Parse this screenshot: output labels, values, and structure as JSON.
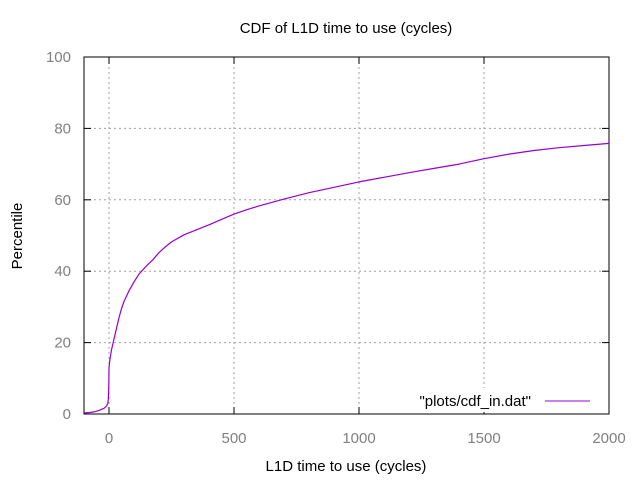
{
  "chart_data": {
    "type": "line",
    "title": "CDF of L1D time to use (cycles)",
    "xlabel": "L1D time to use (cycles)",
    "ylabel": "Percentile",
    "xlim": [
      -100,
      2000
    ],
    "ylim": [
      0,
      100
    ],
    "xticks": [
      0,
      500,
      1000,
      1500,
      2000
    ],
    "yticks": [
      0,
      20,
      40,
      60,
      80,
      100
    ],
    "grid": true,
    "legend_position": "bottom-right",
    "series": [
      {
        "name": "\"plots/cdf_in.dat\"",
        "color": "#9400d3",
        "x": [
          -100,
          -80,
          -60,
          -40,
          -20,
          -10,
          -5,
          -3,
          -1,
          0,
          3,
          10,
          20,
          30,
          40,
          50,
          60,
          80,
          100,
          120,
          150,
          175,
          200,
          225,
          250,
          300,
          350,
          400,
          450,
          500,
          550,
          600,
          700,
          800,
          900,
          1000,
          1100,
          1200,
          1300,
          1400,
          1500,
          1600,
          1700,
          1800,
          1900,
          2000
        ],
        "y": [
          0.3,
          0.4,
          0.6,
          1.0,
          1.6,
          2.2,
          3.0,
          4.0,
          8.0,
          13.0,
          15.0,
          18.0,
          21.0,
          24.0,
          27.0,
          29.5,
          31.5,
          34.5,
          37.0,
          39.2,
          41.5,
          43.2,
          45.2,
          46.8,
          48.2,
          50.2,
          51.6,
          53.0,
          54.5,
          56.0,
          57.2,
          58.3,
          60.2,
          62.0,
          63.5,
          65.0,
          66.3,
          67.6,
          68.8,
          70.0,
          71.5,
          72.8,
          73.8,
          74.6,
          75.2,
          75.8
        ]
      }
    ]
  }
}
